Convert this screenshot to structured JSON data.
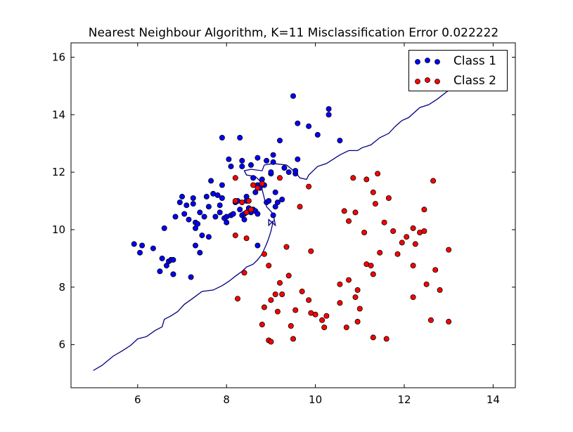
{
  "chart_data": {
    "type": "scatter",
    "title": "Nearest Neighbour Algorithm, K=11 Misclassification Error 0.022222",
    "xlabel": "",
    "ylabel": "",
    "xlim": [
      4.5,
      14.5
    ],
    "ylim": [
      4.5,
      16.5
    ],
    "xticks": [
      6,
      8,
      10,
      12,
      14
    ],
    "yticks": [
      6,
      8,
      10,
      12,
      14,
      16
    ],
    "legend_position": "top-right",
    "series": [
      {
        "name": "Class 1",
        "color": "#0000ff",
        "points": [
          [
            5.92,
            9.5
          ],
          [
            6.05,
            9.2
          ],
          [
            6.1,
            9.45
          ],
          [
            6.35,
            9.35
          ],
          [
            6.5,
            8.55
          ],
          [
            6.55,
            9.0
          ],
          [
            6.6,
            10.05
          ],
          [
            6.65,
            8.75
          ],
          [
            6.7,
            8.9
          ],
          [
            6.75,
            8.95
          ],
          [
            6.8,
            8.45
          ],
          [
            6.8,
            8.95
          ],
          [
            6.8,
            8.45
          ],
          [
            6.85,
            10.45
          ],
          [
            6.95,
            10.95
          ],
          [
            7.0,
            11.15
          ],
          [
            7.05,
            10.55
          ],
          [
            7.1,
            10.85
          ],
          [
            7.15,
            10.35
          ],
          [
            7.2,
            8.35
          ],
          [
            7.25,
            11.1
          ],
          [
            7.25,
            10.9
          ],
          [
            7.3,
            10.25
          ],
          [
            7.3,
            9.45
          ],
          [
            7.3,
            10.05
          ],
          [
            7.35,
            10.2
          ],
          [
            7.4,
            9.2
          ],
          [
            7.4,
            10.6
          ],
          [
            7.45,
            9.8
          ],
          [
            7.5,
            10.45
          ],
          [
            7.55,
            11.15
          ],
          [
            7.6,
            10.8
          ],
          [
            7.6,
            9.75
          ],
          [
            7.65,
            11.7
          ],
          [
            7.7,
            11.25
          ],
          [
            7.75,
            10.45
          ],
          [
            7.8,
            11.2
          ],
          [
            7.85,
            10.6
          ],
          [
            7.85,
            10.85
          ],
          [
            7.9,
            13.2
          ],
          [
            7.9,
            11.55
          ],
          [
            7.9,
            11.1
          ],
          [
            7.95,
            10.4
          ],
          [
            8.0,
            10.25
          ],
          [
            8.0,
            10.45
          ],
          [
            8.05,
            12.45
          ],
          [
            8.1,
            12.2
          ],
          [
            8.1,
            10.5
          ],
          [
            8.15,
            10.55
          ],
          [
            8.2,
            10.95
          ],
          [
            8.25,
            11.0
          ],
          [
            8.3,
            13.2
          ],
          [
            8.3,
            10.7
          ],
          [
            8.35,
            12.4
          ],
          [
            8.35,
            12.2
          ],
          [
            8.35,
            10.5
          ],
          [
            8.4,
            10.35
          ],
          [
            8.4,
            10.55
          ],
          [
            8.45,
            11.15
          ],
          [
            8.45,
            11.0
          ],
          [
            8.5,
            10.75
          ],
          [
            8.55,
            12.25
          ],
          [
            8.55,
            10.6
          ],
          [
            8.6,
            11.8
          ],
          [
            8.6,
            10.7
          ],
          [
            8.65,
            11.3
          ],
          [
            8.65,
            10.65
          ],
          [
            8.7,
            12.5
          ],
          [
            8.7,
            11.55
          ],
          [
            8.7,
            10.55
          ],
          [
            8.7,
            9.45
          ],
          [
            8.75,
            11.45
          ],
          [
            8.8,
            11.75
          ],
          [
            8.85,
            11.55
          ],
          [
            8.9,
            12.4
          ],
          [
            8.9,
            10.95
          ],
          [
            8.95,
            11.0
          ],
          [
            9.0,
            11.95
          ],
          [
            9.0,
            12.0
          ],
          [
            9.05,
            12.6
          ],
          [
            9.05,
            12.35
          ],
          [
            9.05,
            10.5
          ],
          [
            9.1,
            11.3
          ],
          [
            9.1,
            10.8
          ],
          [
            9.15,
            10.95
          ],
          [
            9.2,
            13.1
          ],
          [
            9.25,
            11.05
          ],
          [
            9.3,
            12.15
          ],
          [
            9.4,
            12.0
          ],
          [
            9.5,
            14.65
          ],
          [
            9.55,
            11.95
          ],
          [
            9.55,
            12.05
          ],
          [
            9.6,
            13.7
          ],
          [
            9.6,
            12.45
          ],
          [
            9.85,
            13.6
          ],
          [
            10.05,
            13.3
          ],
          [
            10.3,
            14.2
          ],
          [
            10.3,
            14.0
          ],
          [
            10.55,
            13.1
          ]
        ]
      },
      {
        "name": "Class 2",
        "color": "#ff0000",
        "points": [
          [
            8.2,
            11.8
          ],
          [
            8.2,
            11.0
          ],
          [
            8.2,
            9.8
          ],
          [
            8.25,
            7.6
          ],
          [
            8.35,
            10.95
          ],
          [
            8.4,
            8.5
          ],
          [
            8.45,
            10.6
          ],
          [
            8.45,
            9.7
          ],
          [
            8.5,
            11.0
          ],
          [
            8.55,
            10.7
          ],
          [
            8.6,
            11.55
          ],
          [
            8.7,
            11.45
          ],
          [
            8.8,
            6.7
          ],
          [
            8.8,
            11.6
          ],
          [
            8.85,
            9.15
          ],
          [
            8.85,
            7.3
          ],
          [
            8.95,
            6.15
          ],
          [
            8.95,
            8.75
          ],
          [
            9.0,
            6.1
          ],
          [
            9.0,
            7.55
          ],
          [
            9.1,
            7.75
          ],
          [
            9.15,
            7.15
          ],
          [
            9.2,
            11.8
          ],
          [
            9.2,
            8.15
          ],
          [
            9.25,
            7.75
          ],
          [
            9.35,
            9.4
          ],
          [
            9.4,
            8.4
          ],
          [
            9.45,
            6.65
          ],
          [
            9.5,
            6.2
          ],
          [
            9.55,
            7.2
          ],
          [
            9.65,
            10.8
          ],
          [
            9.7,
            7.85
          ],
          [
            9.85,
            7.55
          ],
          [
            9.85,
            11.5
          ],
          [
            9.9,
            9.25
          ],
          [
            9.9,
            7.1
          ],
          [
            10.0,
            7.05
          ],
          [
            10.15,
            6.85
          ],
          [
            10.2,
            6.6
          ],
          [
            10.25,
            7.0
          ],
          [
            10.55,
            8.1
          ],
          [
            10.55,
            7.45
          ],
          [
            10.65,
            10.65
          ],
          [
            10.7,
            6.6
          ],
          [
            10.75,
            10.3
          ],
          [
            10.75,
            8.25
          ],
          [
            10.85,
            11.8
          ],
          [
            10.9,
            7.65
          ],
          [
            10.9,
            10.6
          ],
          [
            10.95,
            6.8
          ],
          [
            10.95,
            7.9
          ],
          [
            11.0,
            7.25
          ],
          [
            11.1,
            9.9
          ],
          [
            11.15,
            8.8
          ],
          [
            11.15,
            11.75
          ],
          [
            11.25,
            8.75
          ],
          [
            11.3,
            6.25
          ],
          [
            11.3,
            8.45
          ],
          [
            11.3,
            11.3
          ],
          [
            11.35,
            10.9
          ],
          [
            11.4,
            11.95
          ],
          [
            11.45,
            9.2
          ],
          [
            11.55,
            10.25
          ],
          [
            11.6,
            6.2
          ],
          [
            11.65,
            11.1
          ],
          [
            11.75,
            9.95
          ],
          [
            11.85,
            9.15
          ],
          [
            11.95,
            9.55
          ],
          [
            12.05,
            9.75
          ],
          [
            12.2,
            10.05
          ],
          [
            12.2,
            8.75
          ],
          [
            12.2,
            7.65
          ],
          [
            12.25,
            9.5
          ],
          [
            12.35,
            9.9
          ],
          [
            12.45,
            10.7
          ],
          [
            12.45,
            9.95
          ],
          [
            12.5,
            8.1
          ],
          [
            12.6,
            6.85
          ],
          [
            12.65,
            11.7
          ],
          [
            12.7,
            8.6
          ],
          [
            12.8,
            7.9
          ],
          [
            13.0,
            9.3
          ],
          [
            13.0,
            6.8
          ]
        ]
      }
    ],
    "decision_boundary": [
      [
        5.0,
        5.1
      ],
      [
        5.2,
        5.28
      ],
      [
        5.45,
        5.6
      ],
      [
        5.65,
        5.78
      ],
      [
        5.85,
        5.98
      ],
      [
        6.0,
        6.2
      ],
      [
        6.2,
        6.28
      ],
      [
        6.4,
        6.5
      ],
      [
        6.55,
        6.62
      ],
      [
        6.6,
        6.88
      ],
      [
        6.75,
        7.0
      ],
      [
        6.9,
        7.15
      ],
      [
        7.05,
        7.4
      ],
      [
        7.25,
        7.62
      ],
      [
        7.45,
        7.85
      ],
      [
        7.7,
        7.9
      ],
      [
        7.9,
        8.05
      ],
      [
        8.05,
        8.2
      ],
      [
        8.2,
        8.38
      ],
      [
        8.35,
        8.55
      ],
      [
        8.45,
        8.7
      ],
      [
        8.6,
        8.8
      ],
      [
        8.7,
        8.95
      ],
      [
        8.8,
        9.15
      ],
      [
        8.9,
        9.5
      ],
      [
        8.95,
        9.7
      ],
      [
        9.0,
        9.95
      ],
      [
        9.05,
        10.3
      ],
      [
        8.95,
        10.15
      ],
      [
        8.95,
        10.35
      ],
      [
        9.1,
        10.15
      ],
      [
        9.05,
        10.55
      ],
      [
        8.9,
        10.8
      ],
      [
        8.85,
        11.1
      ],
      [
        8.8,
        11.4
      ],
      [
        8.75,
        11.7
      ],
      [
        8.65,
        11.85
      ],
      [
        8.45,
        11.9
      ],
      [
        8.4,
        12.05
      ],
      [
        8.55,
        12.1
      ],
      [
        8.8,
        12.05
      ],
      [
        8.85,
        12.25
      ],
      [
        9.05,
        12.3
      ],
      [
        9.35,
        12.25
      ],
      [
        9.55,
        12.0
      ],
      [
        9.65,
        11.8
      ],
      [
        9.8,
        11.75
      ],
      [
        9.85,
        11.9
      ],
      [
        10.05,
        12.2
      ],
      [
        10.25,
        12.3
      ],
      [
        10.4,
        12.45
      ],
      [
        10.55,
        12.6
      ],
      [
        10.75,
        12.75
      ],
      [
        10.95,
        12.75
      ],
      [
        11.05,
        12.85
      ],
      [
        11.25,
        12.95
      ],
      [
        11.45,
        13.2
      ],
      [
        11.65,
        13.35
      ],
      [
        11.8,
        13.6
      ],
      [
        11.95,
        13.8
      ],
      [
        12.1,
        13.9
      ],
      [
        12.35,
        14.25
      ],
      [
        12.55,
        14.35
      ],
      [
        12.75,
        14.55
      ],
      [
        13.0,
        14.85
      ],
      [
        13.15,
        15.0
      ]
    ]
  }
}
